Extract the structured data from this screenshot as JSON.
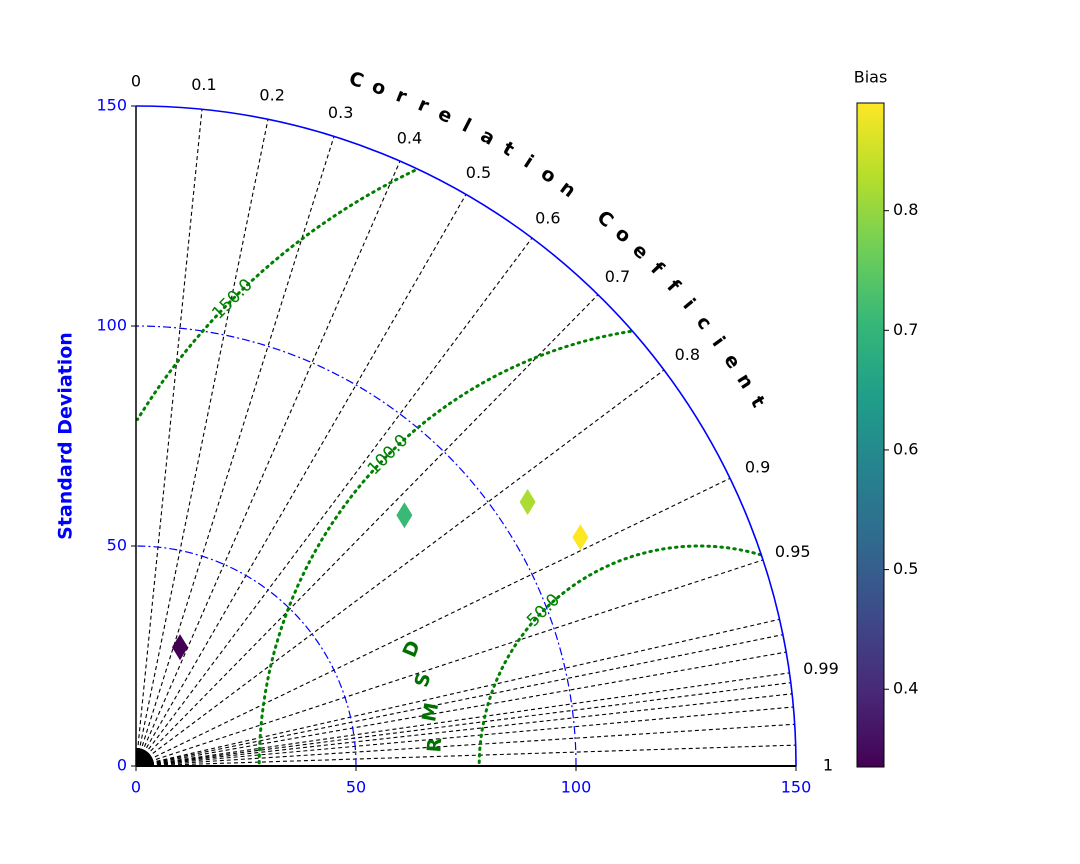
{
  "chart_data": {
    "type": "scatter",
    "subtype": "taylor-diagram",
    "std_axis": {
      "label": "Standard Deviation",
      "ticks": [
        0,
        50,
        100,
        150
      ],
      "tick_labels": [
        "0",
        "50",
        "100",
        "150"
      ],
      "range": [
        0,
        150
      ],
      "color": "#0000ff"
    },
    "std_arcs": [
      50,
      100
    ],
    "correlation_axis": {
      "label": "Correlation Coefficient",
      "ticks": [
        0,
        0.1,
        0.2,
        0.3,
        0.4,
        0.5,
        0.6,
        0.7,
        0.8,
        0.9,
        0.95,
        0.99,
        1
      ],
      "tick_labels": [
        "0",
        "0.1",
        "0.2",
        "0.3",
        "0.4",
        "0.5",
        "0.6",
        "0.7",
        "0.8",
        "0.9",
        "0.95",
        "0.99",
        "1"
      ],
      "extra_ray_values": [
        0.9995,
        0.998,
        0.996,
        0.994,
        0.992,
        0.985,
        0.98,
        0.975
      ]
    },
    "rmsd": {
      "label": "RMSD",
      "reference_std": 128,
      "contours": [
        50,
        100,
        150
      ],
      "contour_labels": [
        "50.0",
        "100.0",
        "150.0"
      ],
      "color": "#008000"
    },
    "points": [
      {
        "x": 10,
        "y": 27,
        "bias": 0.33
      },
      {
        "x": 61,
        "y": 57,
        "bias": 0.71
      },
      {
        "x": 89,
        "y": 60,
        "bias": 0.82
      },
      {
        "x": 101,
        "y": 52,
        "bias": 0.89
      }
    ],
    "colorbar": {
      "title": "Bias",
      "range": [
        0.335,
        0.89
      ],
      "ticks": [
        0.4,
        0.5,
        0.6,
        0.7,
        0.8
      ],
      "tick_labels": [
        "0.4",
        "0.5",
        "0.6",
        "0.7",
        "0.8"
      ],
      "colormap": "viridis",
      "colormap_stops": [
        "#440154",
        "#482878",
        "#3e4989",
        "#31688e",
        "#26828e",
        "#1f9e89",
        "#35b779",
        "#6ece58",
        "#b5de2b",
        "#fde725"
      ]
    }
  }
}
